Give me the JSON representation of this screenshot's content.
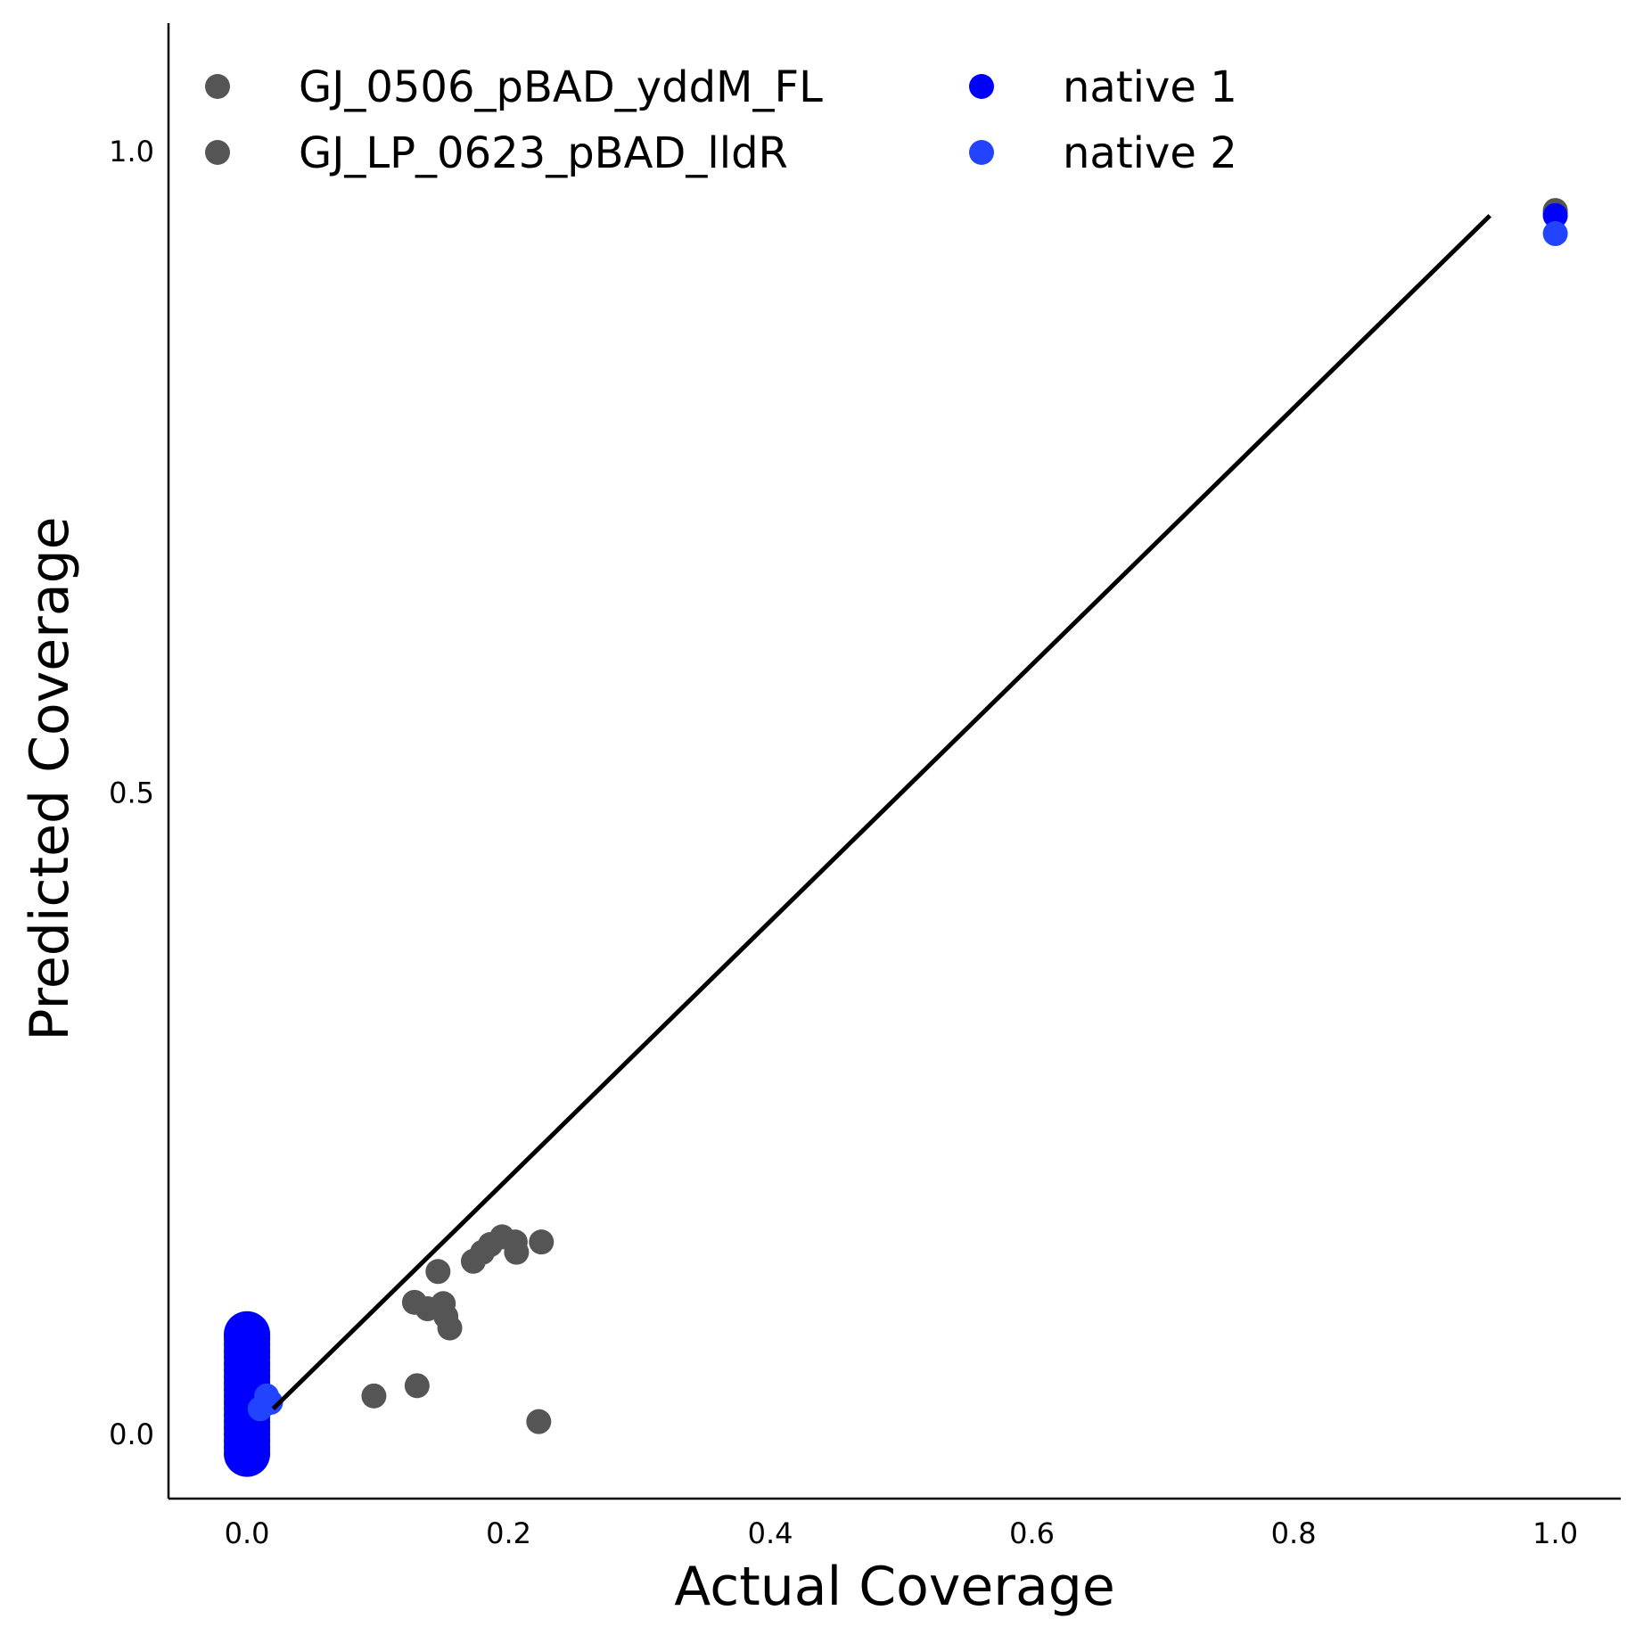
{
  "chart_data": {
    "type": "scatter",
    "title": "",
    "xlabel": "Actual Coverage",
    "ylabel": "Predicted Coverage",
    "xlim": [
      -0.06,
      1.05
    ],
    "ylim": [
      -0.05,
      1.1
    ],
    "xticks": [
      0.0,
      0.2,
      0.4,
      0.6,
      0.8,
      1.0
    ],
    "xtick_labels": [
      "0.0",
      "0.2",
      "0.4",
      "0.6",
      "0.8",
      "1.0"
    ],
    "yticks": [
      0.0,
      0.5,
      1.0
    ],
    "ytick_labels": [
      "0.0",
      "0.5",
      "1.0"
    ],
    "grid": false,
    "legend_position": "top-left",
    "reference_line": {
      "x": [
        0.02,
        0.95
      ],
      "y": [
        0.02,
        0.95
      ],
      "color": "#000000"
    },
    "series": [
      {
        "name": "GJ_0506_pBAD_yddM_FL",
        "color": "#555555",
        "x": [
          0.097,
          0.13,
          0.223,
          0.128,
          0.138,
          0.15,
          0.152,
          0.155,
          0.146,
          0.173,
          0.18,
          0.186,
          0.195,
          0.205,
          0.206,
          0.225,
          1.0
        ],
        "y": [
          0.03,
          0.038,
          0.01,
          0.103,
          0.098,
          0.102,
          0.092,
          0.083,
          0.127,
          0.135,
          0.142,
          0.148,
          0.154,
          0.15,
          0.142,
          0.15,
          0.954
        ]
      },
      {
        "name": "GJ_LP_0623_pBAD_lldR",
        "color": "#555555",
        "x": [
          1.0
        ],
        "y": [
          0.952
        ]
      },
      {
        "name": "native 1",
        "color": "#0000ff",
        "x": [
          0.0,
          0.0,
          0.0,
          0.0,
          0.0,
          0.0,
          0.0,
          0.0,
          0.0,
          0.0,
          0.0,
          0.0,
          0.0,
          0.0,
          0.0,
          0.0,
          0.0,
          0.0,
          0.0,
          0.0,
          1.0
        ],
        "y": [
          -0.015,
          -0.01,
          -0.005,
          0.0,
          0.005,
          0.01,
          0.015,
          0.02,
          0.025,
          0.03,
          0.035,
          0.04,
          0.045,
          0.05,
          0.055,
          0.06,
          0.065,
          0.07,
          0.075,
          0.078,
          0.95
        ]
      },
      {
        "name": "native 2",
        "color": "#2244ff",
        "x": [
          0.018,
          0.015,
          0.01,
          1.0
        ],
        "y": [
          0.025,
          0.03,
          0.02,
          0.936
        ]
      }
    ]
  }
}
